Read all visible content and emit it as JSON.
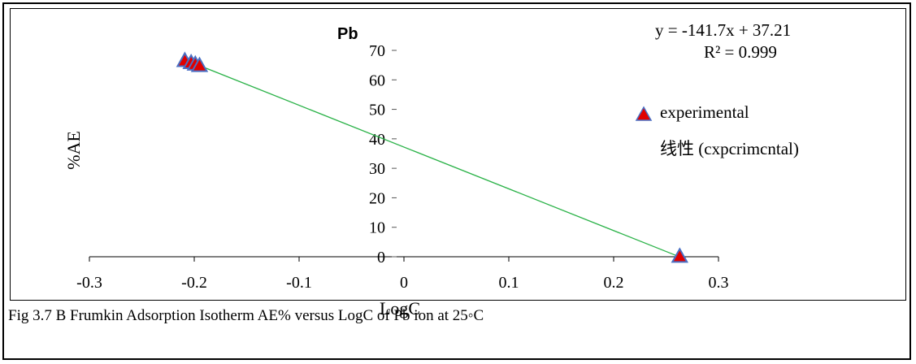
{
  "chart_data": {
    "type": "scatter",
    "title": "Pb",
    "xlabel": "LogC",
    "ylabel": "%AE",
    "xlim": [
      -0.3,
      0.3
    ],
    "ylim": [
      0,
      70
    ],
    "x_ticks": [
      "-0.3",
      "-0.2",
      "-0.1",
      "0",
      "0.1",
      "0.2",
      "0.3"
    ],
    "y_ticks": [
      "0",
      "10",
      "20",
      "30",
      "40",
      "50",
      "60",
      "70"
    ],
    "series": [
      {
        "name": "experimental",
        "marker": "triangle",
        "color": "#e00000",
        "outline": "#4a6fc4",
        "points": [
          {
            "x": -0.209,
            "y": 66.4
          },
          {
            "x": -0.203,
            "y": 65.7
          },
          {
            "x": -0.199,
            "y": 65.2
          },
          {
            "x": -0.195,
            "y": 64.7
          },
          {
            "x": 0.263,
            "y": 0.0
          }
        ]
      }
    ],
    "trendline": {
      "name": "线性 (cxpcrimcntal)",
      "slope": -141.7,
      "intercept": 37.21,
      "x_range": [
        -0.2,
        0.263
      ],
      "color": "#2db34a"
    },
    "equation": "y = -141.7x + 37.21",
    "r_squared": "R² = 0.999",
    "legend_position": "right"
  },
  "caption": "Fig 3.7 B Frumkin Adsorption Isotherm AE% versus LogC of Pb ion at 25◦C"
}
